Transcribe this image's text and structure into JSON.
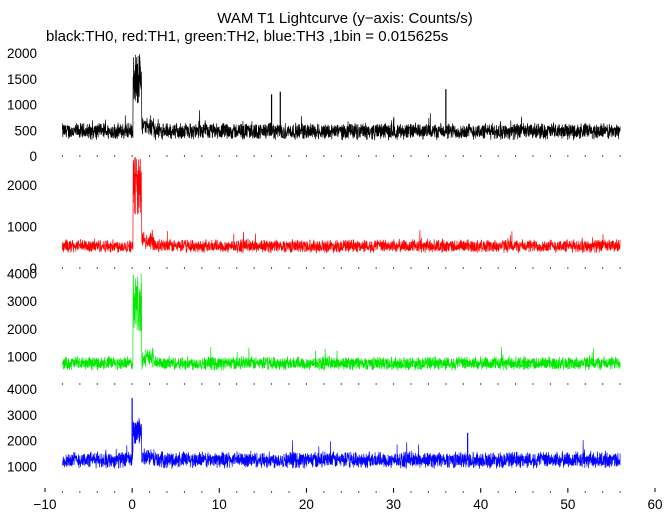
{
  "chart_data": {
    "type": "line",
    "title": "WAM T1 Lightcurve (y−axis: Counts/s)",
    "subtitle": "black:TH0, red:TH1, green:TH2, blue:TH3 ,1bin = 0.015625s",
    "xlim": [
      -10,
      60
    ],
    "x_ticks": [
      -10,
      0,
      10,
      20,
      30,
      40,
      50,
      60
    ],
    "x_tick_labels": [
      "−10",
      "0",
      "10",
      "20",
      "30",
      "40",
      "50",
      "60"
    ],
    "data_x_range": [
      -8,
      56
    ],
    "grid": false,
    "panels": [
      {
        "series": "TH0",
        "color": "#000000",
        "ylim": [
          0,
          2100
        ],
        "y_ticks": [
          0,
          500,
          1000,
          1500,
          2000
        ],
        "y_tick_labels": [
          "0",
          "500",
          "1000",
          "1500",
          "2000"
        ],
        "baseline": 480,
        "noise": 150,
        "burst_peak": 2000,
        "spikes": [
          [
            16,
            1200
          ],
          [
            17,
            1250
          ],
          [
            36,
            1300
          ]
        ]
      },
      {
        "series": "TH1",
        "color": "#ff0000",
        "ylim": [
          0,
          2700
        ],
        "y_ticks": [
          0,
          1000,
          2000
        ],
        "y_tick_labels": [
          "0",
          "1000",
          "2000"
        ],
        "baseline": 530,
        "noise": 150,
        "burst_peak": 2700,
        "spikes": []
      },
      {
        "series": "TH2",
        "color": "#00e800",
        "ylim": [
          0,
          4200
        ],
        "y_ticks": [
          1000,
          2000,
          3000,
          4000
        ],
        "y_tick_labels": [
          "1000",
          "2000",
          "3000",
          "4000"
        ],
        "baseline": 750,
        "noise": 230,
        "burst_peak": 4000,
        "spikes": []
      },
      {
        "series": "TH3",
        "color": "#0000ff",
        "ylim": [
          0,
          4200
        ],
        "y_ticks": [
          1000,
          2000,
          3000,
          4000
        ],
        "y_tick_labels": [
          "1000",
          "2000",
          "3000",
          "4000"
        ],
        "baseline": 1250,
        "noise": 300,
        "burst_peak": 2900,
        "spikes": [
          [
            0,
            3650
          ],
          [
            38.5,
            2300
          ]
        ]
      }
    ]
  }
}
